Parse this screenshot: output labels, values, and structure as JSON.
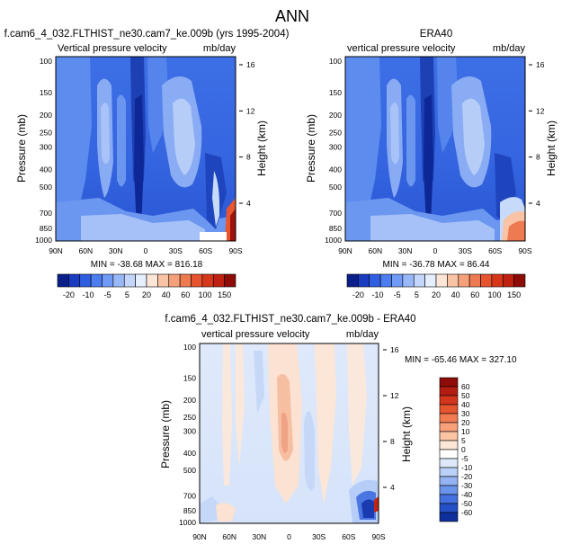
{
  "page": {
    "title": "ANN"
  },
  "chart_data": [
    {
      "type": "heatmap",
      "title": "f.cam6_4_032.FLTHIST_ne30.cam7_ke.009b (yrs 1995-2004)",
      "subtitle_left": "Vertical pressure velocity",
      "subtitle_right": "mb/day",
      "xlabel": "",
      "ylabel": "Pressure (mb)",
      "ylabel_right": "Height (km)",
      "x_ticks": [
        "90N",
        "60N",
        "30N",
        "0",
        "30S",
        "60S",
        "90S"
      ],
      "y_ticks": [
        "100",
        "150",
        "200",
        "250",
        "300",
        "400",
        "500",
        "700",
        "850",
        "1000"
      ],
      "y_ticks_right": [
        "16",
        "12",
        "8",
        "4"
      ],
      "stats": "MIN = -38.68   MAX = 816.18",
      "ylim": [
        1000,
        100
      ],
      "colorbar": {
        "labels": [
          "-20",
          "-10",
          "-5",
          "5",
          "20",
          "40",
          "60",
          "100",
          "150"
        ],
        "colors": [
          "#0b1f8a",
          "#1a3cc0",
          "#2f5ee0",
          "#4b7df0",
          "#6f9af5",
          "#99b8f8",
          "#c4d6fb",
          "#e6efff",
          "#fde6d8",
          "#f9c4a6",
          "#f4a07a",
          "#ee7a52",
          "#e6542f",
          "#d6371a",
          "#bf2010",
          "#8e0b08"
        ]
      }
    },
    {
      "type": "heatmap",
      "title": "ERA40",
      "subtitle_left": "vertical pressure velocity",
      "subtitle_right": "mb/day",
      "xlabel": "",
      "ylabel": "Pressure (mb)",
      "ylabel_right": "Height (km)",
      "x_ticks": [
        "90N",
        "60N",
        "30N",
        "0",
        "30S",
        "60S",
        "90S"
      ],
      "y_ticks": [
        "100",
        "150",
        "200",
        "250",
        "300",
        "400",
        "500",
        "700",
        "850",
        "1000"
      ],
      "y_ticks_right": [
        "16",
        "12",
        "8",
        "4"
      ],
      "stats": "MIN = -36.78   MAX =  86.44",
      "ylim": [
        1000,
        100
      ],
      "colorbar": {
        "labels": [
          "-20",
          "-10",
          "-5",
          "5",
          "20",
          "40",
          "60",
          "100",
          "150"
        ],
        "colors": [
          "#0b1f8a",
          "#1a3cc0",
          "#2f5ee0",
          "#4b7df0",
          "#6f9af5",
          "#99b8f8",
          "#c4d6fb",
          "#e6efff",
          "#fde6d8",
          "#f9c4a6",
          "#f4a07a",
          "#ee7a52",
          "#e6542f",
          "#d6371a",
          "#bf2010",
          "#8e0b08"
        ]
      }
    },
    {
      "type": "heatmap",
      "title": "f.cam6_4_032.FLTHIST_ne30.cam7_ke.009b - ERA40",
      "subtitle_left": "vertical pressure velocity",
      "subtitle_right": "mb/day",
      "xlabel": "",
      "ylabel": "Pressure (mb)",
      "ylabel_right": "Height (km)",
      "x_ticks": [
        "90N",
        "60N",
        "30N",
        "0",
        "30S",
        "60S",
        "90S"
      ],
      "y_ticks": [
        "100",
        "150",
        "200",
        "250",
        "300",
        "400",
        "500",
        "700",
        "850",
        "1000"
      ],
      "y_ticks_right": [
        "16",
        "12",
        "8",
        "4"
      ],
      "stats": "MIN = -65.46   MAX = 327.10",
      "ylim": [
        1000,
        100
      ],
      "colorbar": {
        "labels": [
          "60",
          "50",
          "40",
          "30",
          "20",
          "10",
          "5",
          "0",
          "-5",
          "-10",
          "-20",
          "-30",
          "-40",
          "-50",
          "-60"
        ],
        "colors": [
          "#8e0b08",
          "#b31c12",
          "#d2361d",
          "#e5552f",
          "#f17c52",
          "#f7a07a",
          "#fbc4a4",
          "#fde6d6",
          "#ffffff",
          "#dde9fb",
          "#b9d0f7",
          "#93b3f2",
          "#6c93ec",
          "#4571e0",
          "#2650c8",
          "#0f2f9c"
        ]
      }
    }
  ]
}
